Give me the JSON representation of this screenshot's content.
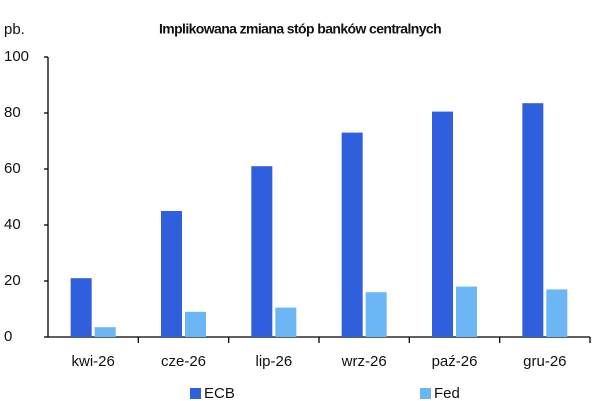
{
  "chart_data": {
    "type": "bar",
    "title": "Implikowana zmiana stóp banków centralnych",
    "y_label": "pb.",
    "categories": [
      "kwi-26",
      "cze-26",
      "lip-26",
      "wrz-26",
      "paź-26",
      "gru-26"
    ],
    "series": [
      {
        "name": "ECB",
        "color": "#2f5fdc",
        "values": [
          21,
          45,
          61,
          73,
          80.5,
          83.5
        ]
      },
      {
        "name": "Fed",
        "color": "#6cb6f6",
        "values": [
          3.5,
          9,
          10.5,
          16,
          18,
          17
        ]
      }
    ],
    "ylim": [
      0,
      100
    ],
    "yticks": [
      0,
      20,
      40,
      60,
      80,
      100
    ],
    "grid": false
  }
}
